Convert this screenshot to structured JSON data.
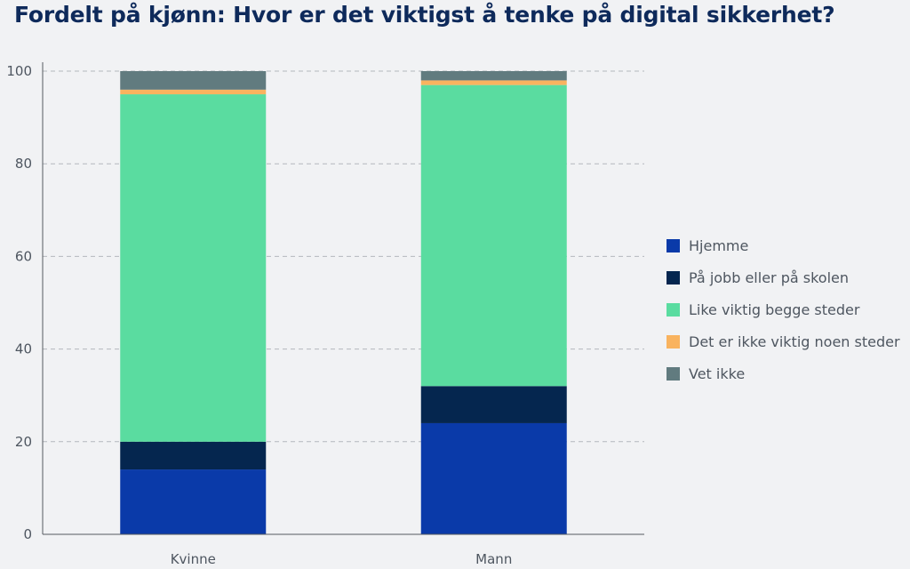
{
  "chart_data": {
    "type": "bar",
    "stacked": true,
    "title": "Fordelt på kjønn: Hvor er det viktigst å tenke på digital sikkerhet?",
    "xlabel": "",
    "ylabel": "",
    "categories": [
      "Kvinne",
      "Mann"
    ],
    "ylim": [
      0,
      100
    ],
    "yticks": [
      0,
      20,
      40,
      60,
      80,
      100
    ],
    "grid": true,
    "legend_position": "right",
    "series": [
      {
        "name": "Hjemme",
        "color": "#0a3aa9",
        "values": [
          14,
          24
        ]
      },
      {
        "name": "På jobb eller på skolen",
        "color": "#05264f",
        "values": [
          6,
          8
        ]
      },
      {
        "name": "Like viktig begge steder",
        "color": "#5adca0",
        "values": [
          75,
          65
        ]
      },
      {
        "name": "Det er ikke viktig noen steder",
        "color": "#f9b35f",
        "values": [
          1,
          1
        ]
      },
      {
        "name": "Vet ikke",
        "color": "#617b7f",
        "values": [
          4,
          2
        ]
      }
    ]
  }
}
